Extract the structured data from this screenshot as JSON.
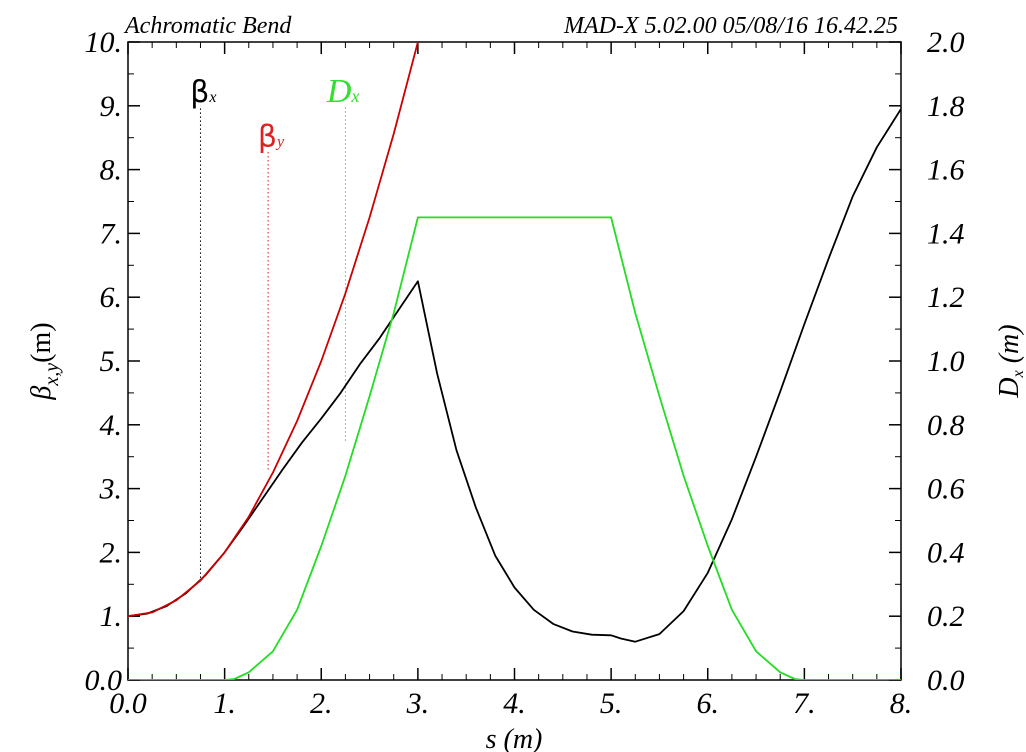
{
  "header": {
    "left": "Achromatic Bend",
    "right": "MAD-X 5.02.00  05/08/16 16.42.25"
  },
  "chart_data": {
    "type": "line",
    "title": "Achromatic Bend",
    "xlabel": "s (m)",
    "ylabel_left": "β_{x,y}(m)",
    "ylabel_right": "Dx (m)",
    "xlim": [
      0,
      8
    ],
    "ylim_left": [
      0,
      10
    ],
    "ylim_right": [
      0,
      2
    ],
    "x_ticks": [
      "0.0",
      "1.",
      "2.",
      "3.",
      "4.",
      "5.",
      "6.",
      "7.",
      "8."
    ],
    "y_left_ticks": [
      "0.0",
      "1.",
      "2.",
      "3.",
      "4.",
      "5.",
      "6.",
      "7.",
      "8.",
      "9.",
      "10."
    ],
    "y_right_ticks": [
      "0.0",
      "0.2",
      "0.4",
      "0.6",
      "0.8",
      "1.0",
      "1.2",
      "1.4",
      "1.6",
      "1.8",
      "2.0"
    ],
    "grid": false,
    "series": [
      {
        "name": "βx",
        "axis": "left",
        "color": "#000000",
        "x": [
          0,
          0.2,
          0.4,
          0.6,
          0.8,
          1.0,
          1.2,
          1.4,
          1.6,
          1.8,
          2.0,
          2.2,
          2.4,
          2.6,
          2.8,
          3.0,
          3.2,
          3.4,
          3.6,
          3.8,
          4.0,
          4.2,
          4.4,
          4.6,
          4.8,
          5.0,
          5.1,
          5.25,
          5.5,
          5.75,
          6.0,
          6.25,
          6.5,
          6.75,
          7.0,
          7.25,
          7.5,
          7.75,
          8.0
        ],
        "y": [
          1.0,
          1.04,
          1.16,
          1.36,
          1.64,
          2.0,
          2.42,
          2.86,
          3.3,
          3.72,
          4.1,
          4.5,
          4.95,
          5.35,
          5.8,
          6.25,
          4.8,
          3.6,
          2.7,
          1.95,
          1.45,
          1.1,
          0.88,
          0.76,
          0.71,
          0.7,
          0.65,
          0.6,
          0.72,
          1.08,
          1.68,
          2.52,
          3.5,
          4.52,
          5.58,
          6.6,
          7.58,
          8.35,
          8.95
        ]
      },
      {
        "name": "βy",
        "axis": "left",
        "color": "#cc0000",
        "x": [
          0,
          0.25,
          0.5,
          0.75,
          1.0,
          1.25,
          1.5,
          1.75,
          2.0,
          2.25,
          2.5,
          2.75,
          3.0
        ],
        "y": [
          1.0,
          1.06,
          1.25,
          1.56,
          2.0,
          2.56,
          3.25,
          4.06,
          5.0,
          6.06,
          7.25,
          8.56,
          10.0
        ]
      },
      {
        "name": "Dx",
        "axis": "right",
        "color": "#22dd22",
        "x": [
          0,
          1.0,
          1.1,
          1.25,
          1.5,
          1.75,
          2.0,
          2.25,
          2.5,
          2.75,
          3.0,
          5.0,
          5.25,
          5.5,
          5.75,
          6.0,
          6.25,
          6.5,
          6.75,
          6.9,
          7.0,
          8.0
        ],
        "y": [
          0.0,
          0.0,
          0.003,
          0.024,
          0.09,
          0.22,
          0.42,
          0.64,
          0.89,
          1.15,
          1.45,
          1.45,
          1.15,
          0.89,
          0.64,
          0.42,
          0.22,
          0.09,
          0.024,
          0.003,
          0.0,
          0.0
        ]
      }
    ],
    "annotations": [
      {
        "label": "βx",
        "x": 0.75,
        "axis": "left",
        "y_from": 1.6,
        "y_to": 9.0
      },
      {
        "label": "βy",
        "x": 1.45,
        "axis": "left",
        "y_from": 3.3,
        "y_to": 8.3
      },
      {
        "label": "Dx",
        "x": 2.25,
        "axis": "left",
        "y_from": 3.75,
        "y_to": 9.0
      }
    ]
  }
}
